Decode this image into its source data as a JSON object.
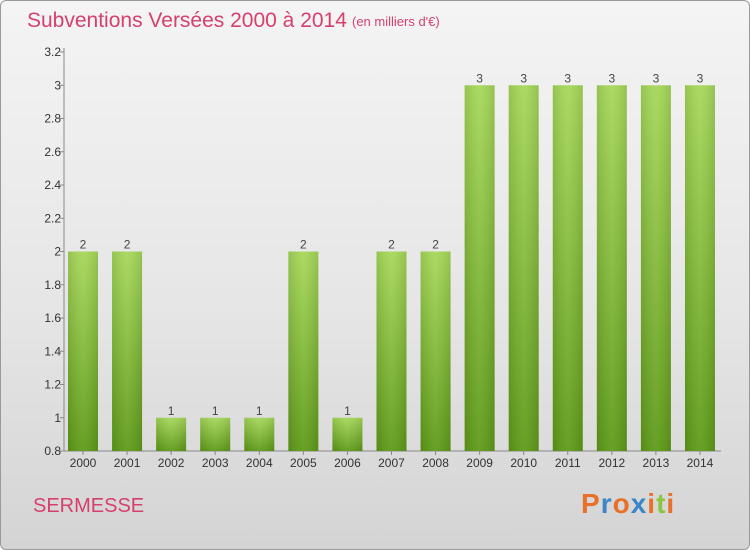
{
  "header": {
    "title": "Subventions Versées 2000 à 2014",
    "subtitle": "(en milliers d'€)"
  },
  "footer": {
    "commune": "SERMESSE",
    "logo_letters": [
      "P",
      "r",
      "o",
      "x",
      "i",
      "t",
      "i"
    ]
  },
  "colors": {
    "title": "#d6406e",
    "bar_light": "#a6d85a",
    "bar_dark": "#5e9a18",
    "logo": [
      "#e8702a",
      "#3a86c8",
      "#e8702a",
      "#3a86c8",
      "#e8702a",
      "#8cc63f",
      "#e8702a"
    ]
  },
  "chart_data": {
    "type": "bar",
    "title": "Subventions Versées 2000 à 2014",
    "subtitle": "(en milliers d'€)",
    "categories": [
      "2000",
      "2001",
      "2002",
      "2003",
      "2004",
      "2005",
      "2006",
      "2007",
      "2008",
      "2009",
      "2010",
      "2011",
      "2012",
      "2013",
      "2014"
    ],
    "values": [
      2,
      2,
      1,
      1,
      1,
      2,
      1,
      2,
      2,
      3,
      3,
      3,
      3,
      3,
      3
    ],
    "data_labels": [
      "2",
      "2",
      "1",
      "1",
      "1",
      "2",
      "1",
      "2",
      "2",
      "3",
      "3",
      "3",
      "3",
      "3",
      "3"
    ],
    "ylim": [
      0.8,
      3.2
    ],
    "ytick_values": [
      0.8,
      1,
      1.2,
      1.4,
      1.6,
      1.8,
      2,
      2.2,
      2.4,
      2.6,
      2.8,
      3,
      3.2
    ],
    "ytick_labels": [
      "0.8",
      "1",
      "1.2",
      "1.4",
      "1.6",
      "1.8",
      "2",
      "2.2",
      "2.4",
      "2.6",
      "2.8",
      "3",
      "3.2"
    ],
    "grid": false,
    "legend": "none"
  }
}
